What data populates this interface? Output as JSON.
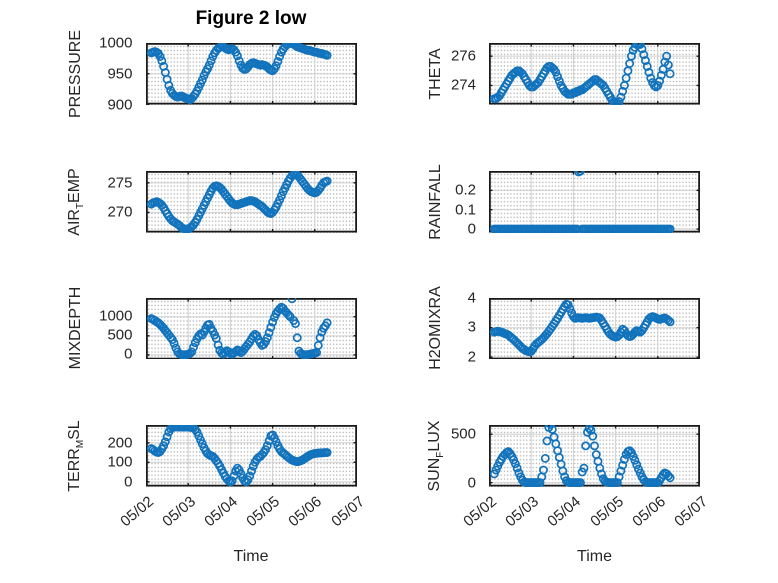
{
  "title": "Figure 2 low",
  "chart_data": {
    "type": "scatter",
    "marker": {
      "shape": "circle",
      "color": "#1273bd",
      "filled": false
    },
    "style": {
      "axis_color": "#1a1a1a",
      "major_grid_color": "#d0d0d0",
      "minor_grid_style": "dotted",
      "minor_grid_color": "#b8b8b8",
      "text_color": "#262626"
    },
    "x_axis": {
      "label": "Time",
      "lim": [
        0,
        5
      ],
      "units": "days since 05/02",
      "ticks": [
        {
          "v": 0,
          "label": "05/02"
        },
        {
          "v": 1,
          "label": "05/03"
        },
        {
          "v": 2,
          "label": "05/04"
        },
        {
          "v": 3,
          "label": "05/05"
        },
        {
          "v": 4,
          "label": "05/06"
        },
        {
          "v": 5,
          "label": "05/07"
        }
      ]
    },
    "panels": [
      {
        "id": "pressure",
        "row": 0,
        "col": 0,
        "ylabel": {
          "pre": "PRESSURE",
          "sub": "",
          "post": ""
        },
        "ylim": [
          900,
          1000
        ],
        "yticks": [
          {
            "v": 900,
            "label": "900"
          },
          {
            "v": 950,
            "label": "950"
          },
          {
            "v": 1000,
            "label": "1000"
          }
        ],
        "series": {
          "t0": 0.125,
          "dt": 0.0416667,
          "values": [
            984,
            985,
            986,
            985,
            983,
            978,
            971,
            962,
            952,
            941,
            931,
            923,
            918,
            915,
            913,
            912,
            913,
            914,
            913,
            911,
            910,
            909,
            908,
            910,
            913,
            917,
            922,
            928,
            934,
            940,
            947,
            953,
            958,
            964,
            971,
            978,
            984,
            988,
            991,
            993,
            995,
            994,
            992,
            990,
            989,
            990,
            991,
            989,
            985,
            979,
            971,
            964,
            959,
            957,
            958,
            961,
            965,
            967,
            968,
            967,
            966,
            965,
            964,
            965,
            964,
            963,
            961,
            958,
            956,
            955,
            958,
            963,
            970,
            978,
            985,
            990,
            994,
            997,
            999,
            1000,
            999,
            998,
            996,
            994,
            993,
            992,
            991,
            990,
            989,
            988,
            988,
            987,
            986,
            985,
            985,
            984,
            983,
            983,
            982,
            981,
            980
          ]
        }
      },
      {
        "id": "theta",
        "row": 0,
        "col": 1,
        "ylabel": {
          "pre": "THETA",
          "sub": "",
          "post": ""
        },
        "ylim": [
          272.7,
          276.9
        ],
        "yticks": [
          {
            "v": 274,
            "label": "274"
          },
          {
            "v": 276,
            "label": "276"
          }
        ],
        "series": {
          "t0": 0.125,
          "dt": 0.0416667,
          "values": [
            273.1,
            273.1,
            273.2,
            273.3,
            273.5,
            273.7,
            273.9,
            274.1,
            274.3,
            274.5,
            274.7,
            274.8,
            274.9,
            275.0,
            275.0,
            274.9,
            274.8,
            274.6,
            274.4,
            274.2,
            274.0,
            273.9,
            273.9,
            274.0,
            274.1,
            274.2,
            274.4,
            274.6,
            274.8,
            275.0,
            275.2,
            275.3,
            275.3,
            275.2,
            275.1,
            274.9,
            274.6,
            274.3,
            274.0,
            273.8,
            273.6,
            273.5,
            273.4,
            273.4,
            273.4,
            273.5,
            273.5,
            273.6,
            273.6,
            273.7,
            273.7,
            273.8,
            273.9,
            274.0,
            274.1,
            274.2,
            274.3,
            274.4,
            274.4,
            274.3,
            274.2,
            274.1,
            274.0,
            273.8,
            273.6,
            273.4,
            273.2,
            273.0,
            272.9,
            272.8,
            272.8,
            272.9,
            273.2,
            273.6,
            274.0,
            274.5,
            275.0,
            275.5,
            276.0,
            276.4,
            276.6,
            276.8,
            276.85,
            276.8,
            276.5,
            276.1,
            275.7,
            275.3,
            274.9,
            274.5,
            274.2,
            274.0,
            273.9,
            274.0,
            274.3,
            274.7,
            275.1,
            275.6,
            276.0,
            275.4,
            274.8
          ]
        }
      },
      {
        "id": "airtemp",
        "row": 1,
        "col": 0,
        "ylabel": {
          "pre": "AIR",
          "sub": "T",
          "post": "EMP"
        },
        "ylim": [
          266.6,
          277.0
        ],
        "yticks": [
          {
            "v": 270,
            "label": "270"
          },
          {
            "v": 275,
            "label": "275"
          }
        ],
        "series": {
          "t0": 0.125,
          "dt": 0.0416667,
          "values": [
            271.4,
            271.6,
            271.7,
            271.8,
            271.7,
            271.5,
            271.2,
            270.8,
            270.3,
            269.8,
            269.3,
            268.9,
            268.6,
            268.4,
            268.2,
            268.0,
            267.8,
            267.5,
            267.3,
            267.2,
            267.1,
            267.2,
            267.4,
            267.6,
            267.9,
            268.3,
            268.8,
            269.4,
            270.0,
            270.6,
            271.2,
            271.8,
            272.4,
            273.0,
            273.6,
            274.1,
            274.4,
            274.5,
            274.4,
            274.2,
            273.9,
            273.5,
            273.1,
            272.7,
            272.3,
            271.9,
            271.6,
            271.4,
            271.3,
            271.3,
            271.4,
            271.5,
            271.6,
            271.7,
            271.8,
            271.9,
            272.0,
            272.0,
            271.9,
            271.8,
            271.6,
            271.4,
            271.2,
            271.0,
            270.7,
            270.4,
            270.1,
            269.9,
            269.8,
            270.0,
            270.4,
            270.9,
            271.5,
            272.1,
            272.8,
            273.5,
            274.1,
            274.7,
            275.3,
            275.8,
            276.2,
            276.4,
            276.5,
            276.3,
            276.0,
            275.6,
            275.2,
            274.8,
            274.4,
            274.0,
            273.7,
            273.5,
            273.4,
            273.3,
            273.4,
            273.7,
            274.1,
            274.6,
            275.0,
            275.2,
            275.3
          ]
        }
      },
      {
        "id": "rainfall",
        "row": 1,
        "col": 1,
        "ylabel": {
          "pre": "RAINFALL",
          "sub": "",
          "post": ""
        },
        "ylim": [
          -0.018,
          0.3
        ],
        "yticks": [
          {
            "v": 0,
            "label": "0"
          },
          {
            "v": 0.1,
            "label": "0.1"
          },
          {
            "v": 0.2,
            "label": "0.2"
          }
        ],
        "series": {
          "t0": 0.125,
          "dt": 0.0416667,
          "values": [
            0,
            0,
            0,
            0,
            0,
            0,
            0,
            0,
            0,
            0,
            0,
            0,
            0,
            0,
            0,
            0,
            0,
            0,
            0,
            0,
            0,
            0,
            0,
            0,
            0,
            0,
            0,
            0,
            0,
            0,
            0,
            0,
            0,
            0,
            0,
            0,
            0,
            0,
            0,
            0,
            0,
            0,
            0,
            0,
            0,
            0,
            0,
            0,
            0.295,
            0.3,
            0,
            0,
            0,
            0,
            0,
            0,
            0,
            0,
            0,
            0,
            0,
            0,
            0,
            0,
            0,
            0,
            0,
            0,
            0,
            0,
            0,
            0,
            0,
            0,
            0,
            0,
            0,
            0,
            0,
            0,
            0,
            0,
            0,
            0,
            0,
            0,
            0,
            0,
            0,
            0,
            0,
            0,
            0,
            0,
            0,
            0,
            0,
            0,
            0,
            0,
            0
          ]
        }
      },
      {
        "id": "mixdepth",
        "row": 2,
        "col": 0,
        "ylabel": {
          "pre": "MIXDEPTH",
          "sub": "",
          "post": ""
        },
        "ylim": [
          -120,
          1490
        ],
        "yticks": [
          {
            "v": 0,
            "label": "0"
          },
          {
            "v": 500,
            "label": "500"
          },
          {
            "v": 1000,
            "label": "1000"
          }
        ],
        "series": {
          "t0": 0.125,
          "dt": 0.0416667,
          "values": [
            950,
            930,
            900,
            870,
            840,
            800,
            750,
            700,
            640,
            580,
            520,
            460,
            400,
            300,
            180,
            80,
            30,
            10,
            5,
            5,
            10,
            20,
            40,
            80,
            200,
            320,
            420,
            500,
            550,
            520,
            600,
            700,
            780,
            800,
            700,
            620,
            520,
            430,
            260,
            120,
            50,
            20,
            60,
            110,
            80,
            40,
            20,
            50,
            90,
            130,
            100,
            60,
            100,
            160,
            220,
            280,
            340,
            420,
            490,
            540,
            500,
            400,
            320,
            250,
            280,
            350,
            450,
            580,
            720,
            860,
            980,
            1080,
            1150,
            1200,
            1250,
            1220,
            1150,
            1100,
            1050,
            1000,
            1470,
            900,
            820,
            450,
            100,
            40,
            15,
            5,
            5,
            10,
            20,
            30,
            40,
            50,
            60,
            250,
            450,
            600,
            700,
            760,
            840
          ]
        }
      },
      {
        "id": "h2omixra",
        "row": 2,
        "col": 1,
        "ylabel": {
          "pre": "H2OMIXRA",
          "sub": "",
          "post": ""
        },
        "ylim": [
          1.92,
          4.01
        ],
        "yticks": [
          {
            "v": 2,
            "label": "2"
          },
          {
            "v": 3,
            "label": "3"
          },
          {
            "v": 4,
            "label": "4"
          }
        ],
        "series": {
          "t0": 0.125,
          "dt": 0.0416667,
          "values": [
            2.85,
            2.87,
            2.88,
            2.87,
            2.85,
            2.83,
            2.8,
            2.78,
            2.75,
            2.7,
            2.65,
            2.6,
            2.54,
            2.48,
            2.42,
            2.36,
            2.3,
            2.26,
            2.22,
            2.2,
            2.18,
            2.2,
            2.28,
            2.38,
            2.45,
            2.5,
            2.55,
            2.6,
            2.66,
            2.73,
            2.8,
            2.88,
            2.96,
            3.05,
            3.14,
            3.23,
            3.32,
            3.42,
            3.52,
            3.62,
            3.72,
            3.8,
            3.78,
            3.65,
            3.5,
            3.38,
            3.32,
            3.33,
            3.34,
            3.33,
            3.32,
            3.33,
            3.34,
            3.33,
            3.32,
            3.33,
            3.34,
            3.35,
            3.36,
            3.35,
            3.33,
            3.25,
            3.15,
            3.05,
            2.95,
            2.85,
            2.78,
            2.73,
            2.7,
            2.68,
            2.7,
            2.75,
            2.85,
            2.95,
            2.9,
            2.8,
            2.73,
            2.7,
            2.72,
            2.78,
            2.85,
            2.9,
            2.88,
            2.85,
            2.9,
            3.0,
            3.1,
            3.2,
            3.3,
            3.35,
            3.38,
            3.36,
            3.33,
            3.3,
            3.28,
            3.3,
            3.32,
            3.33,
            3.3,
            3.25,
            3.2
          ]
        }
      },
      {
        "id": "terrmsl",
        "row": 3,
        "col": 0,
        "ylabel": {
          "pre": "TERR",
          "sub": "M",
          "post": "SL"
        },
        "ylim": [
          -24,
          291
        ],
        "yticks": [
          {
            "v": 0,
            "label": "0"
          },
          {
            "v": 100,
            "label": "100"
          },
          {
            "v": 200,
            "label": "200"
          }
        ],
        "series": {
          "t0": 0.125,
          "dt": 0.0416667,
          "values": [
            170,
            165,
            158,
            152,
            150,
            155,
            168,
            185,
            205,
            230,
            255,
            272,
            278,
            280,
            281,
            281,
            280,
            281,
            280,
            280,
            281,
            280,
            279,
            278,
            275,
            268,
            255,
            235,
            215,
            195,
            175,
            158,
            145,
            138,
            133,
            130,
            120,
            108,
            95,
            80,
            62,
            45,
            28,
            15,
            5,
            0,
            5,
            30,
            55,
            70,
            60,
            40,
            20,
            5,
            0,
            10,
            30,
            55,
            80,
            100,
            115,
            125,
            130,
            140,
            150,
            165,
            185,
            210,
            235,
            240,
            225,
            205,
            185,
            168,
            155,
            148,
            140,
            132,
            125,
            118,
            112,
            108,
            105,
            103,
            105,
            108,
            112,
            118,
            124,
            130,
            136,
            140,
            143,
            145,
            146,
            147,
            148,
            148,
            149,
            150,
            150
          ]
        }
      },
      {
        "id": "sunflux",
        "row": 3,
        "col": 1,
        "ylabel": {
          "pre": "SUN",
          "sub": "F",
          "post": "LUX"
        },
        "ylim": [
          -40,
          595
        ],
        "yticks": [
          {
            "v": 0,
            "label": "0"
          },
          {
            "v": 500,
            "label": "500"
          }
        ],
        "series": {
          "t0": 0.125,
          "dt": 0.0416667,
          "values": [
            90,
            130,
            170,
            210,
            240,
            270,
            290,
            310,
            320,
            300,
            270,
            235,
            195,
            150,
            100,
            60,
            25,
            5,
            0,
            0,
            0,
            0,
            0,
            0,
            0,
            0,
            0,
            60,
            130,
            250,
            430,
            570,
            600,
            550,
            470,
            400,
            330,
            260,
            190,
            120,
            60,
            20,
            5,
            0,
            0,
            0,
            0,
            0,
            0,
            0,
            110,
            150,
            380,
            520,
            560,
            540,
            480,
            380,
            290,
            220,
            150,
            90,
            40,
            15,
            5,
            0,
            0,
            0,
            0,
            0,
            0,
            60,
            120,
            180,
            240,
            290,
            320,
            330,
            310,
            270,
            230,
            185,
            140,
            100,
            60,
            30,
            10,
            0,
            0,
            0,
            0,
            0,
            0,
            0,
            20,
            50,
            80,
            100,
            90,
            70,
            50
          ]
        }
      }
    ]
  }
}
